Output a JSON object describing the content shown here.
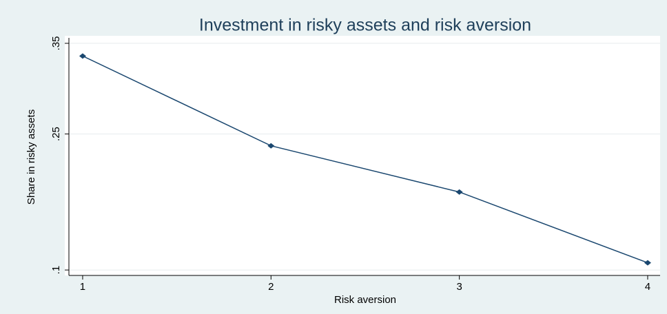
{
  "chart_data": {
    "type": "line",
    "title": "Investment in risky assets and risk aversion",
    "x_label": "Risk aversion",
    "y_label": "Share in risky assets",
    "x": [
      1,
      2,
      3,
      4
    ],
    "series": [
      {
        "name": "Share in risky assets",
        "color": "#1a476f",
        "values": [
          0.336,
          0.237,
          0.186,
          0.108
        ]
      }
    ],
    "xlim": [
      0.927,
      4.066
    ],
    "xticks": [
      1,
      2,
      3,
      4
    ],
    "ylim": [
      0.094,
      0.356
    ],
    "yticks": [
      {
        "value": 0.1,
        "label": ".1"
      },
      {
        "value": 0.25,
        "label": ".25"
      },
      {
        "value": 0.35,
        "label": ".35"
      }
    ],
    "grid": true
  }
}
